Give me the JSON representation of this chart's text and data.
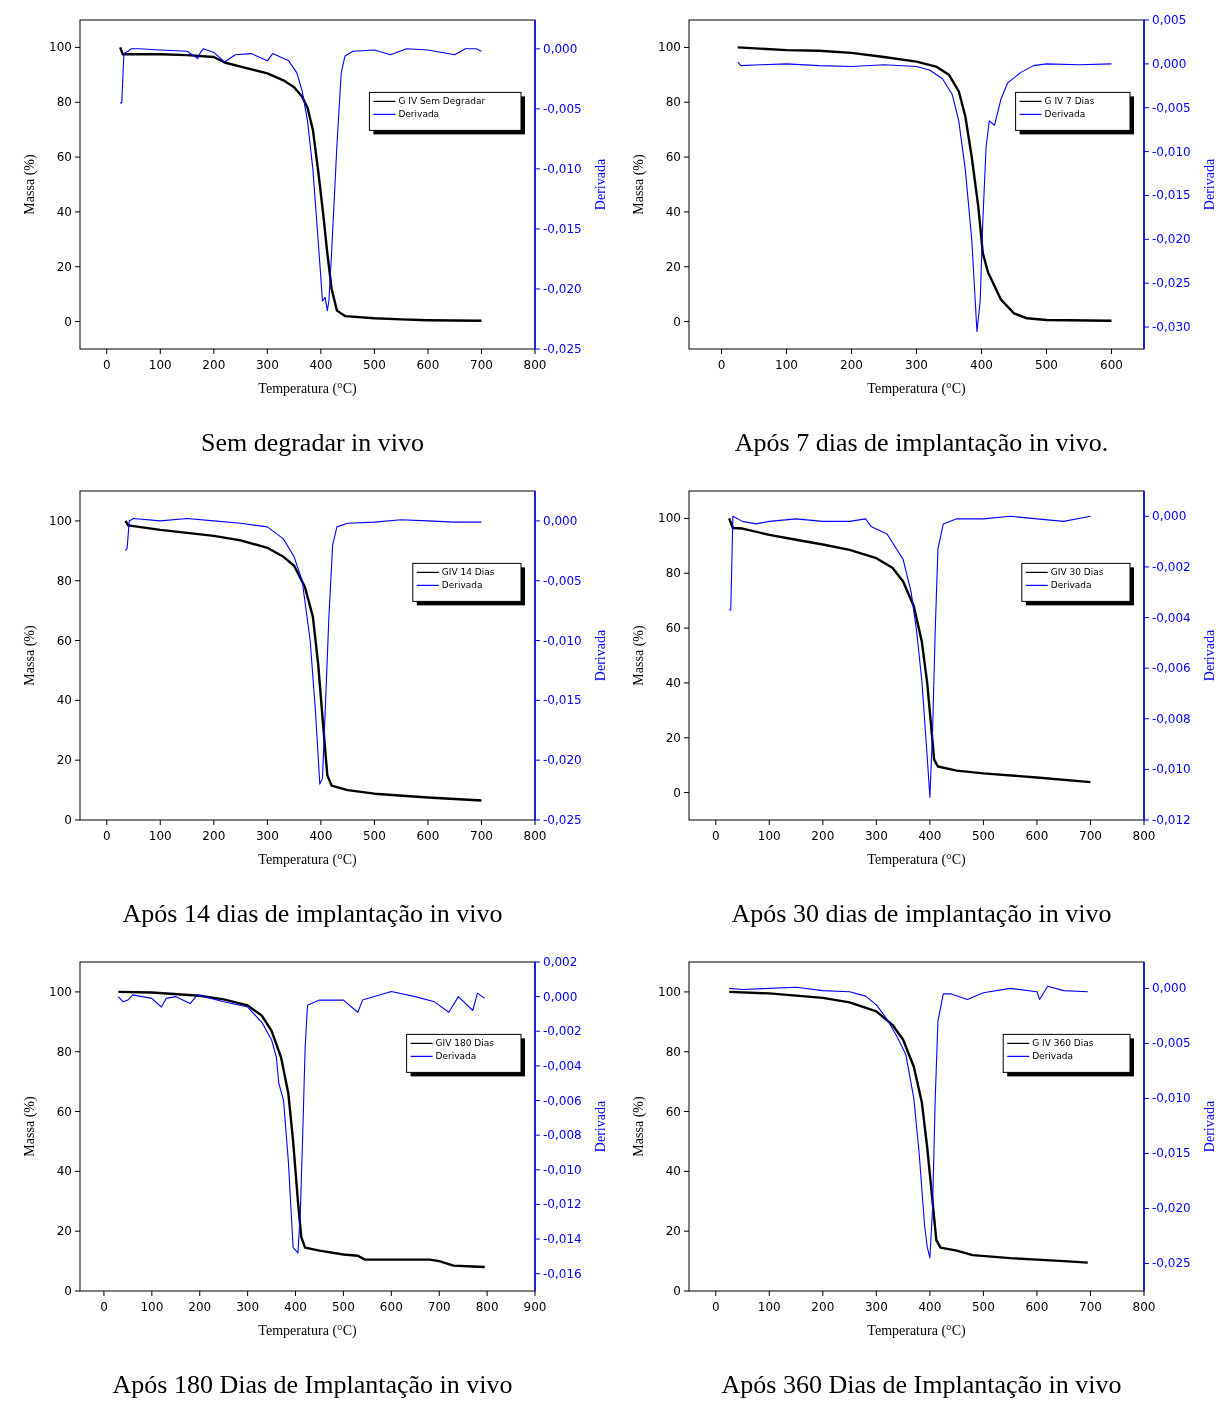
{
  "chart_data": [
    {
      "type": "line",
      "title": "Sem degradar in vivo",
      "xlabel": "Temperatura (°C)",
      "ylabel": "Massa (%)",
      "y2label": "Derivada",
      "legend": "top right",
      "xlim": [
        -50,
        800
      ],
      "xticks": [
        0,
        100,
        200,
        300,
        400,
        500,
        600,
        700,
        800
      ],
      "ylim": [
        -10,
        110
      ],
      "yticks": [
        0,
        20,
        40,
        60,
        80,
        100
      ],
      "y2lim": [
        -0.025,
        0.0024
      ],
      "y2ticks": [
        {
          "value": 0,
          "label": "0,000"
        },
        {
          "value": -0.005,
          "label": "-0,005"
        },
        {
          "value": -0.01,
          "label": "-0,010"
        },
        {
          "value": -0.015,
          "label": "-0,015"
        },
        {
          "value": -0.02,
          "label": "-0,020"
        },
        {
          "value": -0.025,
          "label": "-0,025"
        }
      ],
      "series": [
        {
          "name": "G IV  Sem Degradar",
          "color": "#000000",
          "x": [
            25,
            30,
            100,
            150,
            200,
            220,
            250,
            300,
            330,
            350,
            365,
            375,
            385,
            395,
            405,
            412,
            420,
            430,
            445,
            500,
            550,
            600,
            650,
            700
          ],
          "values": [
            100,
            97.5,
            97.5,
            97.2,
            96.5,
            94.5,
            93,
            90.5,
            88,
            85.5,
            82,
            78,
            70,
            55,
            38,
            25,
            12,
            4,
            2,
            1.2,
            0.8,
            0.5,
            0.4,
            0.3
          ]
        },
        {
          "name": "Derivada",
          "color": "#0000ff",
          "axis": "y2",
          "x": [
            25,
            28,
            32,
            40,
            45,
            60,
            100,
            150,
            170,
            175,
            180,
            200,
            220,
            240,
            270,
            300,
            310,
            340,
            355,
            365,
            375,
            385,
            395,
            403,
            408,
            412,
            415,
            420,
            430,
            438,
            445,
            460,
            500,
            530,
            560,
            600,
            650,
            670,
            690,
            700
          ],
          "values": [
            -0.0045,
            -0.0045,
            -0.0004,
            -0.0002,
            0,
            0,
            -0.0001,
            -0.0002,
            -0.0008,
            -0.0003,
            0,
            -0.0003,
            -0.0011,
            -0.0005,
            -0.0004,
            -0.001,
            -0.0004,
            -0.001,
            -0.002,
            -0.0035,
            -0.006,
            -0.01,
            -0.016,
            -0.021,
            -0.0207,
            -0.0218,
            -0.021,
            -0.017,
            -0.008,
            -0.002,
            -0.0006,
            -0.0002,
            -0.0001,
            -0.0005,
            0,
            -0.0001,
            -0.0005,
            0,
            0,
            -0.0002
          ]
        }
      ]
    },
    {
      "type": "line",
      "title": "Após 7 dias de implantação in vivo.",
      "xlabel": "Temperatura (°C)",
      "ylabel": "Massa (%)",
      "y2label": "Derivada",
      "legend": "top right",
      "xlim": [
        -50,
        650
      ],
      "xticks": [
        0,
        100,
        200,
        300,
        400,
        500,
        600
      ],
      "ylim": [
        -10,
        110
      ],
      "yticks": [
        0,
        20,
        40,
        60,
        80,
        100
      ],
      "y2lim": [
        -0.0325,
        0.005
      ],
      "y2ticks": [
        {
          "value": 0.005,
          "label": "0,005"
        },
        {
          "value": 0,
          "label": "0,000"
        },
        {
          "value": -0.005,
          "label": "-0,005"
        },
        {
          "value": -0.01,
          "label": "-0,010"
        },
        {
          "value": -0.015,
          "label": "-0,015"
        },
        {
          "value": -0.02,
          "label": "-0,020"
        },
        {
          "value": -0.025,
          "label": "-0,025"
        },
        {
          "value": -0.03,
          "label": "-0,030"
        }
      ],
      "series": [
        {
          "name": "G IV  7 Dias",
          "color": "#000000",
          "x": [
            25,
            100,
            150,
            200,
            250,
            300,
            330,
            350,
            365,
            375,
            385,
            395,
            402,
            410,
            420,
            430,
            450,
            470,
            500,
            600
          ],
          "values": [
            100,
            99,
            98.8,
            98,
            96.5,
            94.8,
            93,
            90,
            84,
            75,
            60,
            42,
            25,
            18,
            13,
            8,
            3,
            1.2,
            0.6,
            0.3
          ]
        },
        {
          "name": "Derivada",
          "color": "#0000ff",
          "axis": "y2",
          "x": [
            25,
            30,
            60,
            100,
            150,
            200,
            250,
            300,
            320,
            340,
            355,
            365,
            375,
            385,
            393,
            398,
            402,
            407,
            412,
            420,
            430,
            440,
            460,
            480,
            500,
            550,
            600
          ],
          "values": [
            0.0002,
            -0.0002,
            -0.0001,
            0,
            -0.0002,
            -0.0003,
            -0.0001,
            -0.0003,
            -0.0007,
            -0.0017,
            -0.0035,
            -0.0065,
            -0.012,
            -0.02,
            -0.0305,
            -0.027,
            -0.018,
            -0.0095,
            -0.0065,
            -0.007,
            -0.004,
            -0.0022,
            -0.001,
            -0.0002,
            0,
            -0.0001,
            0
          ]
        }
      ]
    },
    {
      "type": "line",
      "title": "Após 14 dias de implantação in vivo",
      "xlabel": "Temperatura (°C)",
      "ylabel": "Massa (%)",
      "y2label": "Derivada",
      "legend": "top right",
      "xlim": [
        -50,
        800
      ],
      "xticks": [
        0,
        100,
        200,
        300,
        400,
        500,
        600,
        700,
        800
      ],
      "ylim": [
        0,
        110
      ],
      "yticks": [
        0,
        20,
        40,
        60,
        80,
        100
      ],
      "y2lim": [
        -0.025,
        0.0025
      ],
      "y2ticks": [
        {
          "value": 0,
          "label": "0,000"
        },
        {
          "value": -0.005,
          "label": "-0,005"
        },
        {
          "value": -0.01,
          "label": "-0,010"
        },
        {
          "value": -0.015,
          "label": "-0,015"
        },
        {
          "value": -0.02,
          "label": "-0,020"
        },
        {
          "value": -0.025,
          "label": "-0,025"
        }
      ],
      "series": [
        {
          "name": "GIV 14 Dias",
          "color": "#000000",
          "x": [
            35,
            40,
            100,
            200,
            250,
            300,
            330,
            350,
            370,
            385,
            395,
            405,
            412,
            420,
            450,
            500,
            600,
            700
          ],
          "values": [
            100,
            98.5,
            97,
            95,
            93.5,
            91,
            88,
            85,
            78,
            68,
            52,
            30,
            15,
            11.5,
            10,
            8.8,
            7.5,
            6.5
          ]
        },
        {
          "name": "Derivada",
          "color": "#0000ff",
          "axis": "y2",
          "x": [
            35,
            38,
            42,
            50,
            100,
            150,
            200,
            250,
            300,
            330,
            350,
            365,
            380,
            390,
            398,
            403,
            408,
            415,
            422,
            430,
            450,
            500,
            550,
            600,
            650,
            700
          ],
          "values": [
            -0.0025,
            -0.0023,
            0,
            0.0002,
            0,
            0.0002,
            0,
            -0.0002,
            -0.0005,
            -0.0015,
            -0.003,
            -0.005,
            -0.01,
            -0.016,
            -0.022,
            -0.0215,
            -0.016,
            -0.008,
            -0.002,
            -0.0005,
            -0.0002,
            -0.0001,
            0.0001,
            0,
            -0.0001,
            -0.0001
          ]
        }
      ]
    },
    {
      "type": "line",
      "title": "Após 30 dias de implantação in vivo",
      "xlabel": "Temperatura (°C)",
      "ylabel": "Massa (%)",
      "y2label": "Derivada",
      "legend": "top right",
      "xlim": [
        -50,
        800
      ],
      "xticks": [
        0,
        100,
        200,
        300,
        400,
        500,
        600,
        700,
        800
      ],
      "ylim": [
        -10,
        110
      ],
      "yticks": [
        0,
        20,
        40,
        60,
        80,
        100
      ],
      "y2lim": [
        -0.012,
        0.001
      ],
      "y2ticks": [
        {
          "value": 0,
          "label": "0,000"
        },
        {
          "value": -0.002,
          "label": "-0,002"
        },
        {
          "value": -0.004,
          "label": "-0,004"
        },
        {
          "value": -0.006,
          "label": "-0,006"
        },
        {
          "value": -0.008,
          "label": "-0,008"
        },
        {
          "value": -0.01,
          "label": "-0,010"
        },
        {
          "value": -0.012,
          "label": "-0,012"
        }
      ],
      "series": [
        {
          "name": "GIV 30 Dias",
          "color": "#000000",
          "x": [
            25,
            32,
            50,
            100,
            150,
            200,
            250,
            300,
            330,
            350,
            370,
            385,
            395,
            402,
            408,
            415,
            450,
            500,
            600,
            700
          ],
          "values": [
            100,
            96.5,
            96.3,
            94,
            92.2,
            90.5,
            88.5,
            85.5,
            82,
            77,
            68,
            55,
            40,
            25,
            12,
            9.5,
            8,
            7,
            5.5,
            3.8
          ]
        },
        {
          "name": "Derivada",
          "color": "#0000ff",
          "axis": "y2",
          "x": [
            25,
            28,
            32,
            50,
            75,
            100,
            150,
            200,
            250,
            280,
            290,
            320,
            335,
            350,
            365,
            375,
            385,
            395,
            400,
            405,
            410,
            415,
            425,
            450,
            500,
            550,
            600,
            650,
            700
          ],
          "values": [
            -0.0037,
            -0.0037,
            0,
            -0.0002,
            -0.0003,
            -0.0002,
            -0.0001,
            -0.0002,
            -0.0002,
            -0.0001,
            -0.0004,
            -0.0007,
            -0.0012,
            -0.0017,
            -0.003,
            -0.0045,
            -0.0065,
            -0.0095,
            -0.0111,
            -0.0085,
            -0.0045,
            -0.0013,
            -0.0003,
            -0.0001,
            -0.0001,
            0,
            -0.0001,
            -0.0002,
            0
          ]
        }
      ]
    },
    {
      "type": "line",
      "title": "Após 180 Dias de Implantação in vivo",
      "xlabel": "Temperatura (°C)",
      "ylabel": "Massa (%)",
      "y2label": "Derivada",
      "legend": "top right",
      "xlim": [
        -50,
        900
      ],
      "xticks": [
        0,
        100,
        200,
        300,
        400,
        500,
        600,
        700,
        800,
        900
      ],
      "ylim": [
        0,
        110
      ],
      "yticks": [
        0,
        20,
        40,
        60,
        80,
        100
      ],
      "y2lim": [
        -0.017,
        0.002
      ],
      "y2ticks": [
        {
          "value": 0.002,
          "label": "0,002"
        },
        {
          "value": 0,
          "label": "0,000"
        },
        {
          "value": -0.002,
          "label": "-0,002"
        },
        {
          "value": -0.004,
          "label": "-0,004"
        },
        {
          "value": -0.006,
          "label": "-0,006"
        },
        {
          "value": -0.008,
          "label": "-0,008"
        },
        {
          "value": -0.01,
          "label": "-0,010"
        },
        {
          "value": -0.012,
          "label": "-0,012"
        },
        {
          "value": -0.014,
          "label": "-0,014"
        },
        {
          "value": -0.016,
          "label": "-0,016"
        }
      ],
      "series": [
        {
          "name": "GIV 180 Dias",
          "color": "#000000",
          "x": [
            30,
            100,
            200,
            250,
            300,
            330,
            350,
            370,
            385,
            395,
            405,
            412,
            420,
            450,
            500,
            530,
            545,
            600,
            680,
            700,
            730,
            770,
            795
          ],
          "values": [
            100,
            99.8,
            98.7,
            97.5,
            95.5,
            92,
            87,
            78,
            66,
            50,
            30,
            18,
            14.5,
            13.5,
            12.2,
            11.8,
            10.5,
            10.5,
            10.5,
            10,
            8.5,
            8.2,
            8
          ]
        },
        {
          "name": "Derivada",
          "color": "#0000ff",
          "axis": "y2",
          "x": [
            30,
            40,
            50,
            60,
            100,
            120,
            130,
            150,
            180,
            195,
            250,
            300,
            330,
            350,
            360,
            365,
            375,
            385,
            395,
            405,
            410,
            415,
            420,
            425,
            450,
            500,
            530,
            540,
            600,
            650,
            690,
            720,
            740,
            770,
            780,
            795
          ],
          "values": [
            0,
            -0.0003,
            -0.0002,
            0.0001,
            -0.0001,
            -0.0006,
            -0.0001,
            0,
            -0.0004,
            0.0001,
            -0.0003,
            -0.0006,
            -0.0015,
            -0.0025,
            -0.0035,
            -0.005,
            -0.006,
            -0.0095,
            -0.0145,
            -0.0148,
            -0.0125,
            -0.008,
            -0.003,
            -0.0005,
            -0.0002,
            -0.0002,
            -0.0009,
            -0.0002,
            0.0003,
            0,
            -0.0003,
            -0.0009,
            0,
            -0.0008,
            0.0002,
            -0.0001
          ]
        }
      ]
    },
    {
      "type": "line",
      "title": "Após 360 Dias de Implantação in vivo",
      "xlabel": "Temperatura (°C)",
      "ylabel": "Massa (%)",
      "y2label": "Derivada",
      "legend": "top right",
      "xlim": [
        -50,
        800
      ],
      "xticks": [
        0,
        100,
        200,
        300,
        400,
        500,
        600,
        700,
        800
      ],
      "ylim": [
        0,
        110
      ],
      "yticks": [
        0,
        20,
        40,
        60,
        80,
        100
      ],
      "y2lim": [
        -0.0275,
        0.0024
      ],
      "y2ticks": [
        {
          "value": 0,
          "label": "0,000"
        },
        {
          "value": -0.005,
          "label": "-0,005"
        },
        {
          "value": -0.01,
          "label": "-0,010"
        },
        {
          "value": -0.015,
          "label": "-0,015"
        },
        {
          "value": -0.02,
          "label": "-0,020"
        },
        {
          "value": -0.025,
          "label": "-0,025"
        }
      ],
      "series": [
        {
          "name": "G  IV 360 Dias",
          "color": "#000000",
          "x": [
            25,
            100,
            200,
            250,
            300,
            330,
            350,
            370,
            385,
            395,
            405,
            412,
            420,
            450,
            480,
            550,
            600,
            650,
            695
          ],
          "values": [
            100,
            99.5,
            98,
            96.5,
            93.5,
            89,
            84,
            75,
            63,
            48,
            30,
            17,
            14.5,
            13.5,
            12,
            11,
            10.5,
            10,
            9.5
          ]
        },
        {
          "name": "Derivada",
          "color": "#0000ff",
          "axis": "y2",
          "x": [
            25,
            50,
            100,
            150,
            200,
            250,
            280,
            300,
            320,
            340,
            355,
            370,
            380,
            390,
            395,
            400,
            405,
            410,
            415,
            425,
            440,
            470,
            500,
            550,
            600,
            605,
            620,
            650,
            695
          ],
          "values": [
            0,
            -0.0001,
            0,
            0.0001,
            -0.0002,
            -0.0003,
            -0.0007,
            -0.0015,
            -0.0028,
            -0.0045,
            -0.006,
            -0.01,
            -0.015,
            -0.0215,
            -0.0235,
            -0.0245,
            -0.02,
            -0.01,
            -0.003,
            -0.0005,
            -0.0005,
            -0.001,
            -0.0004,
            0,
            -0.0003,
            -0.001,
            0.0002,
            -0.0002,
            -0.0003
          ]
        }
      ]
    }
  ]
}
